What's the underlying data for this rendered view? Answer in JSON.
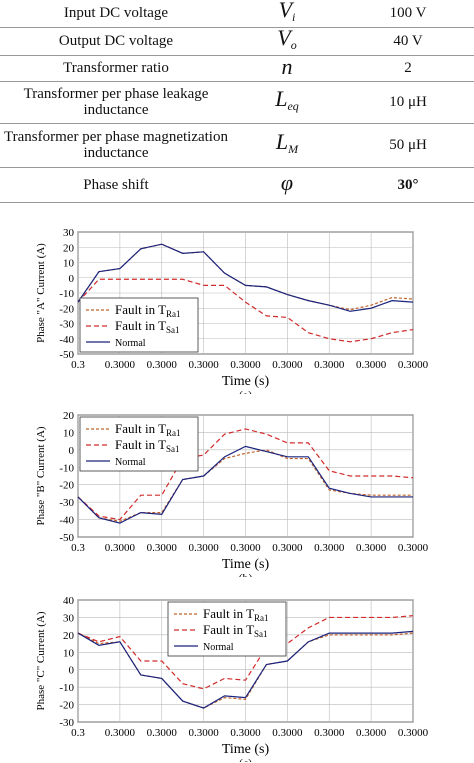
{
  "table": {
    "rows": [
      {
        "label": "Input DC voltage",
        "sym": "V",
        "sub": "i",
        "value": "100 V",
        "h": 27
      },
      {
        "label": "Output DC voltage",
        "sym": "V",
        "sub": "o",
        "value": "40 V",
        "h": 28
      },
      {
        "label": "Transformer ratio",
        "sym": "n",
        "sub": "",
        "value": "2",
        "h": 26
      },
      {
        "label": "Transformer per phase leakage inductance",
        "sym": "L",
        "sub": "eq",
        "value": "10 μH",
        "h": 42
      },
      {
        "label": "Transformer per phase magnetization inductance",
        "sym": "L",
        "sub": "M",
        "value": "50 μH",
        "h": 44
      },
      {
        "label": "Phase shift",
        "sym": "φ",
        "sub": "",
        "value": "30°",
        "h": 35
      }
    ]
  },
  "chart_data": [
    {
      "type": "line",
      "caption": "(a)",
      "ylabel": "Phase \"A\" Current (A)",
      "xlabel": "Time (s)",
      "ylim": [
        -50,
        30
      ],
      "yticks": [
        30,
        20,
        10,
        0,
        -10,
        -20,
        -30,
        -40,
        -50
      ],
      "xtick_labels": [
        "0.3",
        "0.3000",
        "0.3000",
        "0.3000",
        "0.3000",
        "0.3000",
        "0.3000",
        "0.3000",
        "0.3000"
      ],
      "legend": {
        "position": "bottom-left",
        "entries": [
          "Fault in T_Ra1",
          "Fault in T_Sa1",
          "Normal"
        ]
      },
      "x": [
        0,
        0.5,
        1.0,
        1.5,
        2.0,
        2.5,
        3.0,
        3.5,
        4.0,
        4.5,
        5.0,
        5.5,
        6.0,
        6.5,
        7.0,
        7.5,
        8.0
      ],
      "series": [
        {
          "name": "Fault in T_Ra1",
          "color": "#c0632a",
          "dash": "3,2",
          "values": [
            -16,
            4,
            6,
            19,
            22,
            16,
            17,
            3,
            -5,
            -6,
            -11,
            -15,
            -18,
            -21,
            -18,
            -13,
            -14
          ]
        },
        {
          "name": "Fault in T_Sa1",
          "color": "#d22a2a",
          "dash": "5,3",
          "values": [
            -16,
            -1,
            -1,
            -1,
            -1,
            -1,
            -5,
            -5,
            -16,
            -25,
            -26,
            -36,
            -40,
            -42,
            -40,
            -36,
            -34
          ]
        },
        {
          "name": "Normal",
          "color": "#1a237e",
          "dash": "",
          "values": [
            -16,
            4,
            6,
            19,
            22,
            16,
            17,
            3,
            -5,
            -6,
            -11,
            -15,
            -18,
            -22,
            -20,
            -15,
            -16
          ]
        }
      ]
    },
    {
      "type": "line",
      "caption": "(b)",
      "ylabel": "Phase \"B\" Current (A)",
      "xlabel": "Time (s)",
      "ylim": [
        -50,
        20
      ],
      "yticks": [
        20,
        10,
        0,
        -10,
        -20,
        -30,
        -40,
        -50
      ],
      "xtick_labels": [
        "0.3",
        "0.3000",
        "0.3000",
        "0.3000",
        "0.3000",
        "0.3000",
        "0.3000",
        "0.3000",
        "0.3000"
      ],
      "legend": {
        "position": "top-left",
        "entries": [
          "Fault in T_Ra1",
          "Fault in T_Sa1",
          "Normal"
        ]
      },
      "x": [
        0,
        0.5,
        1.0,
        1.5,
        2.0,
        2.5,
        3.0,
        3.5,
        4.0,
        4.5,
        5.0,
        5.5,
        6.0,
        6.5,
        7.0,
        7.5,
        8.0
      ],
      "series": [
        {
          "name": "Fault in T_Ra1",
          "color": "#c0632a",
          "dash": "3,2",
          "values": [
            -27,
            -39,
            -41,
            -36,
            -36,
            -17,
            -15,
            -5,
            -2,
            0,
            -5,
            -5,
            -23,
            -25,
            -26,
            -26,
            -26
          ]
        },
        {
          "name": "Fault in T_Sa1",
          "color": "#d22a2a",
          "dash": "5,3",
          "values": [
            -27,
            -38,
            -40,
            -26,
            -26,
            -5,
            -3,
            9,
            12,
            9,
            4,
            4,
            -12,
            -15,
            -15,
            -15,
            -16
          ]
        },
        {
          "name": "Normal",
          "color": "#1a237e",
          "dash": "",
          "values": [
            -27,
            -39,
            -42,
            -36,
            -37,
            -17,
            -15,
            -4,
            2,
            -1,
            -4,
            -4,
            -22,
            -25,
            -27,
            -27,
            -27
          ]
        }
      ]
    },
    {
      "type": "line",
      "caption": "(c)",
      "ylabel": "Phase \"C\" Current (A)",
      "xlabel": "Time (s)",
      "ylim": [
        -30,
        40
      ],
      "yticks": [
        40,
        30,
        20,
        10,
        0,
        -10,
        -20,
        -30
      ],
      "xtick_labels": [
        "0.3",
        "0.3000",
        "0.3000",
        "0.3000",
        "0.3000",
        "0.3000",
        "0.3000",
        "0.3000",
        "0.3000"
      ],
      "legend": {
        "position": "top-center",
        "entries": [
          "Fault in T_Ra1",
          "Fault in T_Sa1",
          "Normal"
        ]
      },
      "x": [
        0,
        0.5,
        1.0,
        1.5,
        2.0,
        2.5,
        3.0,
        3.5,
        4.0,
        4.5,
        5.0,
        5.5,
        6.0,
        6.5,
        7.0,
        7.5,
        8.0
      ],
      "series": [
        {
          "name": "Fault in T_Ra1",
          "color": "#c0632a",
          "dash": "3,2",
          "values": [
            21,
            15,
            16,
            -3,
            -5,
            -18,
            -22,
            -16,
            -17,
            3,
            5,
            16,
            20,
            20,
            20,
            20,
            21
          ]
        },
        {
          "name": "Fault in T_Sa1",
          "color": "#d22a2a",
          "dash": "5,3",
          "values": [
            21,
            16,
            19,
            5,
            5,
            -8,
            -11,
            -5,
            -6,
            13,
            15,
            24,
            30,
            30,
            30,
            30,
            31
          ]
        },
        {
          "name": "Normal",
          "color": "#1a237e",
          "dash": "",
          "values": [
            21,
            14,
            16,
            -3,
            -5,
            -18,
            -22,
            -15,
            -16,
            3,
            5,
            16,
            21,
            21,
            21,
            21,
            22
          ]
        }
      ]
    }
  ]
}
